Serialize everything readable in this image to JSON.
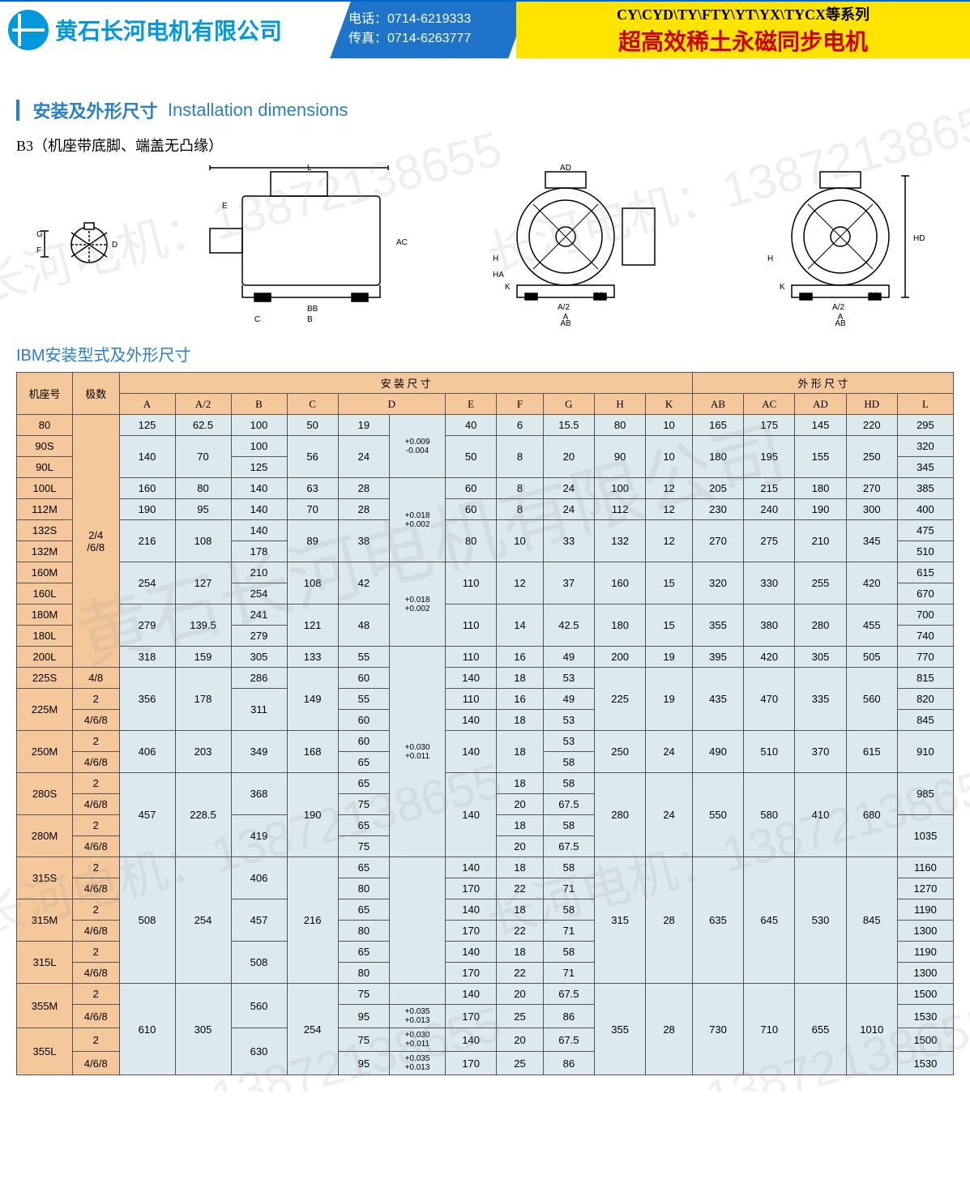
{
  "header": {
    "company": "黄石长河电机有限公司",
    "tel_label": "电话：",
    "tel": "0714-6219333",
    "fax_label": "传真：",
    "fax": "0714-6263777",
    "series": "CY\\CYD\\TY\\FTY\\YT\\YX\\TYCX等系列",
    "product": "超高效稀土永磁同步电机"
  },
  "section": {
    "title_cn": "安装及外形尺寸",
    "title_en": "Installation dimensions",
    "subtitle": "B3（机座带底脚、端盖无凸缘）",
    "table_title": "IBM安装型式及外形尺寸"
  },
  "watermarks": {
    "company": "黄石长河电机有限公司",
    "phone": "长河电机：13872138655"
  },
  "table": {
    "group_install": "安 装 尺 寸",
    "group_outline": "外 形 尺 寸",
    "h_frame": "机座号",
    "h_poles": "极数",
    "cols_install": [
      "A",
      "A/2",
      "B",
      "C",
      "D",
      "",
      "E",
      "F",
      "G",
      "H",
      "K"
    ],
    "cols_outline": [
      "AB",
      "AC",
      "AD",
      "HD",
      "L"
    ],
    "rows": [
      {
        "frame": "80",
        "poles": null,
        "A": "125",
        "A2": "62.5",
        "B": "100",
        "C": "50",
        "D": "19",
        "Dtol": null,
        "E": "40",
        "F": "6",
        "G": "15.5",
        "H": "80",
        "K": "10",
        "AB": "165",
        "AC": "175",
        "AD": "145",
        "HD": "220",
        "L": "295"
      },
      {
        "frame": "90S",
        "poles": null,
        "A": null,
        "A2": null,
        "B": "100",
        "C": null,
        "D": null,
        "Dtol": "+0.009\n-0.004",
        "E": null,
        "F": null,
        "G": null,
        "H": null,
        "K": null,
        "AB": null,
        "AC": null,
        "AD": null,
        "HD": null,
        "L": "320"
      },
      {
        "frame": "90L",
        "poles": null,
        "A": "140",
        "A2": "70",
        "B": "125",
        "C": "56",
        "D": "24",
        "Dtol": null,
        "E": "50",
        "F": "8",
        "G": "20",
        "H": "90",
        "K": "10",
        "AB": "180",
        "AC": "195",
        "AD": "155",
        "HD": "250",
        "L": "345"
      },
      {
        "frame": "100L",
        "poles": null,
        "A": "160",
        "A2": "80",
        "B": "140",
        "C": "63",
        "D": "28",
        "Dtol": null,
        "E": "60",
        "F": "8",
        "G": "24",
        "H": "100",
        "K": "12",
        "AB": "205",
        "AC": "215",
        "AD": "180",
        "HD": "270",
        "L": "385"
      },
      {
        "frame": "112M",
        "poles": "2/4\n/6/8",
        "A": "190",
        "A2": "95",
        "B": "140",
        "C": "70",
        "D": "28",
        "Dtol": null,
        "E": "60",
        "F": "8",
        "G": "24",
        "H": "112",
        "K": "12",
        "AB": "230",
        "AC": "240",
        "AD": "190",
        "HD": "300",
        "L": "400"
      },
      {
        "frame": "132S",
        "poles": null,
        "A": null,
        "A2": null,
        "B": "140",
        "C": null,
        "D": null,
        "Dtol": null,
        "E": null,
        "F": null,
        "G": null,
        "H": null,
        "K": null,
        "AB": null,
        "AC": null,
        "AD": null,
        "HD": null,
        "L": "475"
      },
      {
        "frame": "132M",
        "poles": null,
        "A": "216",
        "A2": "108",
        "B": "178",
        "C": "89",
        "D": "38",
        "Dtol": "+0.018\n+0.002",
        "E": "80",
        "F": "10",
        "G": "33",
        "H": "132",
        "K": "12",
        "AB": "270",
        "AC": "275",
        "AD": "210",
        "HD": "345",
        "L": "510"
      },
      {
        "frame": "160M",
        "poles": null,
        "A": null,
        "A2": null,
        "B": "210",
        "C": null,
        "D": null,
        "Dtol": null,
        "E": null,
        "F": null,
        "G": null,
        "H": null,
        "K": null,
        "AB": null,
        "AC": null,
        "AD": null,
        "HD": null,
        "L": "615"
      },
      {
        "frame": "160L",
        "poles": null,
        "A": "254",
        "A2": "127",
        "B": "254",
        "C": "108",
        "D": "42",
        "Dtol": null,
        "E": "110",
        "F": "12",
        "G": "37",
        "H": "160",
        "K": "15",
        "AB": "320",
        "AC": "330",
        "AD": "255",
        "HD": "420",
        "L": "670"
      },
      {
        "frame": "180M",
        "poles": null,
        "A": null,
        "A2": null,
        "B": "241",
        "C": null,
        "D": null,
        "Dtol": "+0.018\n+0.002",
        "E": null,
        "F": null,
        "G": null,
        "H": null,
        "K": null,
        "AB": null,
        "AC": null,
        "AD": null,
        "HD": null,
        "L": "700"
      },
      {
        "frame": "180L",
        "poles": null,
        "A": "279",
        "A2": "139.5",
        "B": "279",
        "C": "121",
        "D": "48",
        "Dtol": null,
        "E": "110",
        "F": "14",
        "G": "42.5",
        "H": "180",
        "K": "15",
        "AB": "355",
        "AC": "380",
        "AD": "280",
        "HD": "455",
        "L": "740"
      },
      {
        "frame": "200L",
        "poles": null,
        "A": "318",
        "A2": "159",
        "B": "305",
        "C": "133",
        "D": "55",
        "Dtol": null,
        "E": "110",
        "F": "16",
        "G": "49",
        "H": "200",
        "K": "19",
        "AB": "395",
        "AC": "420",
        "AD": "305",
        "HD": "505",
        "L": "770"
      },
      {
        "frame": "225S",
        "poles": "4/8",
        "A": null,
        "A2": null,
        "B": "286",
        "C": null,
        "D": "60",
        "Dtol": null,
        "E": "140",
        "F": "18",
        "G": "53",
        "H": null,
        "K": null,
        "AB": null,
        "AC": null,
        "AD": null,
        "HD": null,
        "L": "815"
      },
      {
        "frame": null,
        "poles": "2",
        "A": "356",
        "A2": "178",
        "B": "311",
        "C": "149",
        "D": "55",
        "Dtol": null,
        "E": "110",
        "F": "16",
        "G": "49",
        "H": "225",
        "K": "19",
        "AB": "435",
        "AC": "470",
        "AD": "335",
        "HD": "560",
        "L": "820"
      },
      {
        "frame": "225M",
        "poles": "4/6/8",
        "A": null,
        "A2": null,
        "B": null,
        "C": null,
        "D": "60",
        "Dtol": null,
        "E": "140",
        "F": "18",
        "G": "53",
        "H": null,
        "K": null,
        "AB": null,
        "AC": null,
        "AD": null,
        "HD": null,
        "L": "845"
      },
      {
        "frame": null,
        "poles": "2",
        "A": null,
        "A2": null,
        "B": null,
        "C": null,
        "D": "60",
        "Dtol": null,
        "E": null,
        "F": null,
        "G": "53",
        "H": null,
        "K": null,
        "AB": null,
        "AC": null,
        "AD": null,
        "HD": null,
        "L": null
      },
      {
        "frame": "250M",
        "poles": "4/6/8",
        "A": "406",
        "A2": "203",
        "B": "349",
        "C": "168",
        "D": "65",
        "Dtol": null,
        "E": "140",
        "F": "18",
        "G": "58",
        "H": "250",
        "K": "24",
        "AB": "490",
        "AC": "510",
        "AD": "370",
        "HD": "615",
        "L": "910"
      },
      {
        "frame": null,
        "poles": "2",
        "A": null,
        "A2": null,
        "B": null,
        "C": null,
        "D": "65",
        "Dtol": null,
        "E": null,
        "F": "18",
        "G": "58",
        "H": null,
        "K": null,
        "AB": null,
        "AC": null,
        "AD": null,
        "HD": null,
        "L": null
      },
      {
        "frame": "280S",
        "poles": "4/6/8",
        "A": null,
        "A2": null,
        "B": "368",
        "C": null,
        "D": "75",
        "Dtol": null,
        "E": null,
        "F": "20",
        "G": "67.5",
        "H": null,
        "K": null,
        "AB": null,
        "AC": null,
        "AD": null,
        "HD": null,
        "L": "985"
      },
      {
        "frame": null,
        "poles": "2",
        "A": "457",
        "A2": "228.5",
        "B": null,
        "C": "190",
        "D": "65",
        "Dtol": "+0.030\n+0.011",
        "E": "140",
        "F": "18",
        "G": "58",
        "H": "280",
        "K": "24",
        "AB": "550",
        "AC": "580",
        "AD": "410",
        "HD": "680",
        "L": null
      },
      {
        "frame": "280M",
        "poles": "4/6/8",
        "A": null,
        "A2": null,
        "B": "419",
        "C": null,
        "D": "75",
        "Dtol": null,
        "E": null,
        "F": "20",
        "G": "67.5",
        "H": null,
        "K": null,
        "AB": null,
        "AC": null,
        "AD": null,
        "HD": null,
        "L": "1035"
      },
      {
        "frame": null,
        "poles": "2",
        "A": null,
        "A2": null,
        "B": null,
        "C": null,
        "D": "65",
        "Dtol": null,
        "E": "140",
        "F": "18",
        "G": "58",
        "H": null,
        "K": null,
        "AB": null,
        "AC": null,
        "AD": null,
        "HD": null,
        "L": "1160"
      },
      {
        "frame": "315S",
        "poles": "4/6/8",
        "A": null,
        "A2": null,
        "B": "406",
        "C": null,
        "D": "80",
        "Dtol": null,
        "E": "170",
        "F": "22",
        "G": "71",
        "H": null,
        "K": null,
        "AB": null,
        "AC": null,
        "AD": null,
        "HD": null,
        "L": "1270"
      },
      {
        "frame": null,
        "poles": "2",
        "A": null,
        "A2": null,
        "B": null,
        "C": null,
        "D": "65",
        "Dtol": null,
        "E": "140",
        "F": "18",
        "G": "58",
        "H": null,
        "K": null,
        "AB": null,
        "AC": null,
        "AD": null,
        "HD": null,
        "L": "1190"
      },
      {
        "frame": "315M",
        "poles": "4/6/8",
        "A": "508",
        "A2": "254",
        "B": "457",
        "C": "216",
        "D": "80",
        "Dtol": null,
        "E": "170",
        "F": "22",
        "G": "71",
        "H": "315",
        "K": "28",
        "AB": "635",
        "AC": "645",
        "AD": "530",
        "HD": "845",
        "L": "1300"
      },
      {
        "frame": null,
        "poles": "2",
        "A": null,
        "A2": null,
        "B": null,
        "C": null,
        "D": "65",
        "Dtol": null,
        "E": "140",
        "F": "18",
        "G": "58",
        "H": null,
        "K": null,
        "AB": null,
        "AC": null,
        "AD": null,
        "HD": null,
        "L": "1190"
      },
      {
        "frame": "315L",
        "poles": "4/6/8",
        "A": null,
        "A2": null,
        "B": "508",
        "C": null,
        "D": "80",
        "Dtol": null,
        "E": "170",
        "F": "22",
        "G": "71",
        "H": null,
        "K": null,
        "AB": null,
        "AC": null,
        "AD": null,
        "HD": null,
        "L": "1300"
      },
      {
        "frame": null,
        "poles": "2",
        "A": null,
        "A2": null,
        "B": null,
        "C": null,
        "D": "75",
        "Dtol": null,
        "E": "140",
        "F": "20",
        "G": "67.5",
        "H": null,
        "K": null,
        "AB": null,
        "AC": null,
        "AD": null,
        "HD": null,
        "L": "1500"
      },
      {
        "frame": "355M",
        "poles": "4/6/8",
        "A": null,
        "A2": null,
        "B": "560",
        "C": null,
        "D": "95",
        "Dtol": "+0.035\n+0.013",
        "E": "170",
        "F": "25",
        "G": "86",
        "H": null,
        "K": null,
        "AB": null,
        "AC": null,
        "AD": null,
        "HD": null,
        "L": "1530"
      },
      {
        "frame": null,
        "poles": "2",
        "A": "610",
        "A2": "305",
        "B": null,
        "C": "254",
        "D": "75",
        "Dtol": "+0.030\n+0.011",
        "E": "140",
        "F": "20",
        "G": "67.5",
        "H": "355",
        "K": "28",
        "AB": "730",
        "AC": "710",
        "AD": "655",
        "HD": "1010",
        "L": "1500"
      },
      {
        "frame": "355L",
        "poles": "4/6/8",
        "A": null,
        "A2": null,
        "B": "630",
        "C": null,
        "D": "95",
        "Dtol": "+0.035\n+0.013",
        "E": "170",
        "F": "25",
        "G": "86",
        "H": null,
        "K": null,
        "AB": null,
        "AC": null,
        "AD": null,
        "HD": null,
        "L": "1530"
      }
    ]
  }
}
